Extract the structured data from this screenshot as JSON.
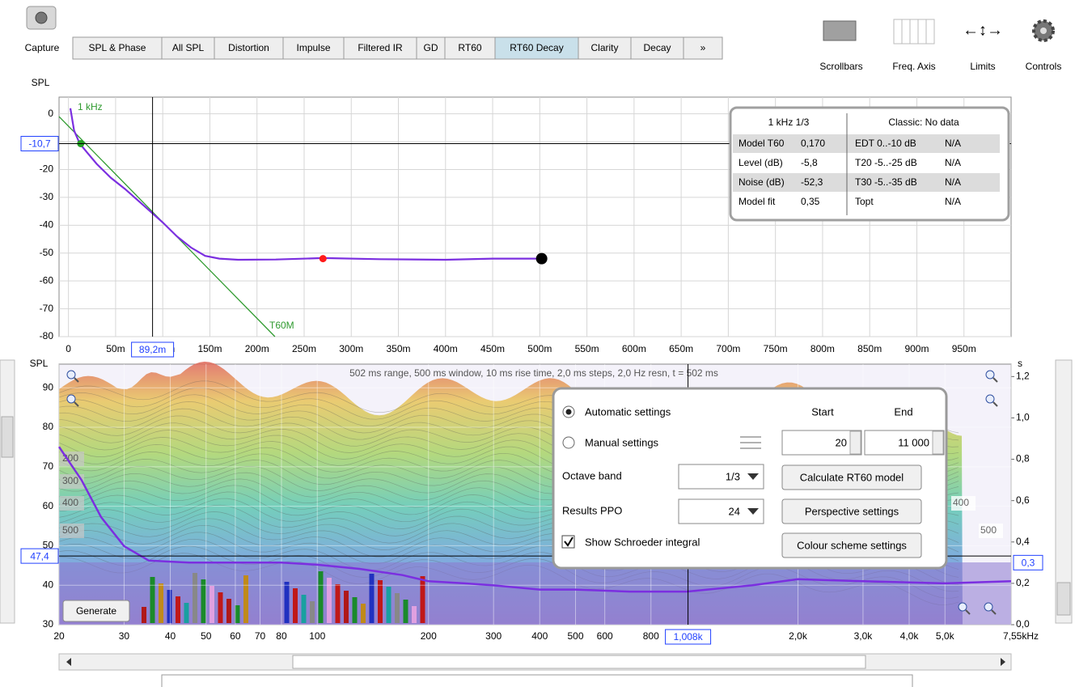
{
  "toolbar": {
    "capture": "Capture",
    "tabs": [
      "SPL & Phase",
      "All SPL",
      "Distortion",
      "Impulse",
      "Filtered IR",
      "GD",
      "RT60",
      "RT60 Decay",
      "Clarity",
      "Decay",
      "»"
    ],
    "selected_tab": 7,
    "tools": [
      "Scrollbars",
      "Freq. Axis",
      "Limits",
      "Controls"
    ]
  },
  "decay_chart": {
    "type": "line",
    "y_label": "SPL",
    "band_label": "1 kHz",
    "fit_label": "T60M",
    "xlim": [
      -0.01,
      1.0
    ],
    "ylim": [
      -80,
      6
    ],
    "grid": true,
    "xticks": [
      0,
      {
        "value": 0.05,
        "label": "50m"
      },
      {
        "value": 0.1,
        "label": "100m"
      },
      {
        "value": 0.15,
        "label": "150m"
      },
      {
        "value": 0.2,
        "label": "200m"
      },
      {
        "value": 0.25,
        "label": "250m"
      },
      {
        "value": 0.3,
        "label": "300m"
      },
      {
        "value": 0.35,
        "label": "350m"
      },
      {
        "value": 0.4,
        "label": "400m"
      },
      {
        "value": 0.45,
        "label": "450m"
      },
      {
        "value": 0.5,
        "label": "500m"
      },
      {
        "value": 0.55,
        "label": "550m"
      },
      {
        "value": 0.6,
        "label": "600m"
      },
      {
        "value": 0.65,
        "label": "650m"
      },
      {
        "value": 0.7,
        "label": "700m"
      },
      {
        "value": 0.75,
        "label": "750m"
      },
      {
        "value": 0.8,
        "label": "800m"
      },
      {
        "value": 0.85,
        "label": "850m"
      },
      {
        "value": 0.9,
        "label": "900m"
      },
      {
        "value": 0.95,
        "label": "950m"
      }
    ],
    "yticks": [
      0,
      -10,
      -20,
      -30,
      -40,
      -50,
      -60,
      -70,
      -80
    ],
    "decay": {
      "color": "#7b2fe0",
      "x": [
        0.002,
        0.006,
        0.012,
        0.02,
        0.03,
        0.045,
        0.06,
        0.08,
        0.1,
        0.115,
        0.13,
        0.145,
        0.16,
        0.18,
        0.22,
        0.27,
        0.33,
        0.4,
        0.45,
        0.502
      ],
      "values": [
        2,
        -6,
        -10.7,
        -14,
        -18,
        -23,
        -27,
        -33,
        -39,
        -44,
        -48,
        -51,
        -52,
        -52.4,
        -52.3,
        -51.8,
        -52.2,
        -52.4,
        -52,
        -52
      ]
    },
    "fit": {
      "color": "#2e9a2e",
      "x": [
        -0.01,
        0.219
      ],
      "values": [
        -1,
        -80
      ]
    },
    "markers": [
      {
        "x": 0.013,
        "y": -10.7,
        "color": "#22a022"
      },
      {
        "x": 0.27,
        "y": -52,
        "color": "#ff1a1a"
      },
      {
        "x": 0.502,
        "y": -52,
        "color": "#000000"
      }
    ],
    "cursor": {
      "x": {
        "value": 0.0892,
        "label": "89,2m"
      },
      "y": {
        "value": -10.7,
        "label": "-10,7"
      }
    }
  },
  "info": {
    "header": [
      "1 kHz 1/3",
      "Classic: No data"
    ],
    "rows": [
      [
        "Model T60",
        "0,170",
        "EDT 0..-10 dB",
        "N/A"
      ],
      [
        "Level (dB)",
        "-5,8",
        "T20 -5..-25 dB",
        "N/A"
      ],
      [
        "Noise (dB)",
        "-52,3",
        "T30 -5..-35 dB",
        "N/A"
      ],
      [
        "Model fit",
        "0,35",
        "Topt",
        "N/A"
      ]
    ]
  },
  "waterfall": {
    "y_label": "SPL",
    "y2_label": "s",
    "banner": "502 ms range, 500 ms window, 10 ms rise time, 2,0 ms steps,  2,0 Hz resn, t = 502 ms",
    "log_x": true,
    "xlim": [
      20,
      7550
    ],
    "xticks": [
      20,
      30,
      40,
      50,
      60,
      70,
      80,
      100,
      200,
      300,
      400,
      500,
      600,
      800,
      {
        "value": 2000,
        "label": "2,0k"
      },
      {
        "value": 3000,
        "label": "3,0k"
      },
      {
        "value": 4000,
        "label": "4,0k"
      },
      {
        "value": 5000,
        "label": "5,0k"
      },
      {
        "value": 7550,
        "label": "7,55kHz"
      }
    ],
    "ylim": [
      30,
      96
    ],
    "yticks": [
      30,
      40,
      50,
      60,
      70,
      80,
      90
    ],
    "y2lim": [
      0,
      1.26
    ],
    "y2ticks": [
      {
        "value": 0,
        "label": "0,0"
      },
      {
        "value": 0.2,
        "label": "0,2"
      },
      {
        "value": 0.4,
        "label": "0,4"
      },
      {
        "value": 0.6,
        "label": "0,6"
      },
      {
        "value": 0.8,
        "label": "0,8"
      },
      {
        "value": 1.0,
        "label": "1,0"
      },
      {
        "value": 1.2,
        "label": "1,2"
      }
    ],
    "rt60": {
      "color": "#7b2fe0",
      "axis": "y2",
      "x": [
        20,
        23,
        26,
        30,
        35,
        45,
        60,
        80,
        100,
        130,
        170,
        200,
        250,
        300,
        400,
        500,
        700,
        1000,
        1500,
        2000,
        3000,
        5000,
        7550
      ],
      "values": [
        0.86,
        0.7,
        0.52,
        0.38,
        0.31,
        0.3,
        0.3,
        0.3,
        0.29,
        0.27,
        0.24,
        0.21,
        0.2,
        0.19,
        0.17,
        0.17,
        0.16,
        0.16,
        0.19,
        0.22,
        0.21,
        0.2,
        0.21
      ]
    },
    "cursor": {
      "x": {
        "value": 1008,
        "label": "1,008k"
      },
      "y": {
        "value": 47.4,
        "label": "47,4"
      },
      "y2": {
        "value": 0.3,
        "label": "0,3"
      }
    },
    "depth_labels_left": [
      "200",
      "300",
      "400",
      "500"
    ],
    "depth_labels_right": [
      "400",
      "500"
    ],
    "generate": "Generate"
  },
  "settings": {
    "auto": "Automatic settings",
    "manual": "Manual settings",
    "start_label": "Start",
    "end_label": "End",
    "start": 20,
    "end": "11 000",
    "octave_label": "Octave band",
    "octave": "1/3",
    "ppo_label": "Results PPO",
    "ppo": 24,
    "schroeder": "Show Schroeder integral",
    "buttons": [
      "Calculate RT60 model",
      "Perspective settings",
      "Colour scheme settings"
    ]
  }
}
